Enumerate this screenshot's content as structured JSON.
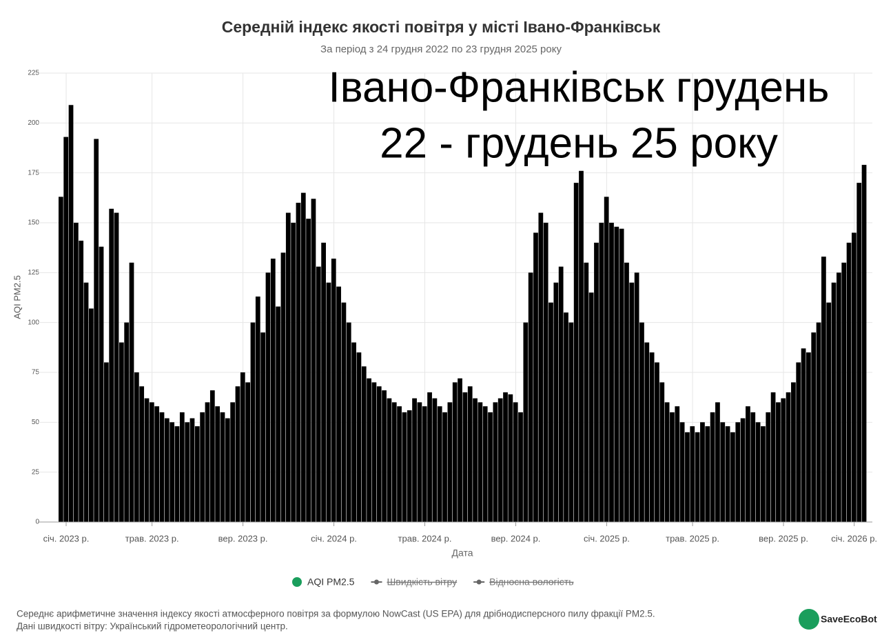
{
  "chart_data": {
    "type": "bar",
    "title": "Середній індекс якості повітря у місті Івано-Франківськ",
    "subtitle": "За період з 24 грудня 2022 по 23 грудня 2025 року",
    "annotation": [
      "Івано-Франківськ грудень",
      "22 - грудень 25 року"
    ],
    "y_label": "AQI PM2.5",
    "x_label": "Дата",
    "ylim": [
      0,
      225
    ],
    "yticks": [
      0,
      25,
      50,
      75,
      100,
      125,
      150,
      175,
      200,
      225
    ],
    "grid": true,
    "categories": [
      null,
      "січ. 2023 р.",
      null,
      null,
      null,
      null,
      null,
      null,
      null,
      null,
      null,
      null,
      null,
      null,
      null,
      null,
      null,
      null,
      "трав. 2023 р.",
      null,
      null,
      null,
      null,
      null,
      null,
      null,
      null,
      null,
      null,
      null,
      null,
      null,
      null,
      null,
      null,
      null,
      "вер. 2023 р.",
      null,
      null,
      null,
      null,
      null,
      null,
      null,
      null,
      null,
      null,
      null,
      null,
      null,
      null,
      null,
      null,
      null,
      "січ. 2024 р.",
      null,
      null,
      null,
      null,
      null,
      null,
      null,
      null,
      null,
      null,
      null,
      null,
      null,
      null,
      null,
      null,
      null,
      "трав. 2024 р.",
      null,
      null,
      null,
      null,
      null,
      null,
      null,
      null,
      null,
      null,
      null,
      null,
      null,
      null,
      null,
      null,
      null,
      "вер. 2024 р.",
      null,
      null,
      null,
      null,
      null,
      null,
      null,
      null,
      null,
      null,
      null,
      null,
      null,
      null,
      null,
      null,
      null,
      "січ. 2025 р.",
      null,
      null,
      null,
      null,
      null,
      null,
      null,
      null,
      null,
      null,
      null,
      null,
      null,
      null,
      null,
      null,
      "трав. 2025 р.",
      null,
      null,
      null,
      null,
      null,
      null,
      null,
      null,
      null,
      null,
      null,
      null,
      null,
      null,
      null,
      null,
      null,
      "вер. 2025 р.",
      null,
      null,
      null,
      null,
      null,
      null,
      null,
      null,
      null,
      null,
      null,
      null,
      null,
      "січ. 2026 р.",
      null,
      null
    ],
    "series": [
      {
        "name": "AQI PM2.5",
        "color": "#000000",
        "values": [
          163,
          193,
          209,
          150,
          141,
          120,
          107,
          192,
          138,
          80,
          157,
          155,
          90,
          100,
          130,
          75,
          68,
          62,
          60,
          58,
          55,
          52,
          50,
          48,
          55,
          50,
          52,
          48,
          55,
          60,
          66,
          58,
          55,
          52,
          60,
          68,
          75,
          70,
          100,
          113,
          95,
          125,
          132,
          108,
          135,
          155,
          150,
          160,
          165,
          152,
          162,
          128,
          140,
          120,
          132,
          118,
          110,
          100,
          90,
          85,
          78,
          72,
          70,
          68,
          66,
          62,
          60,
          58,
          55,
          56,
          62,
          60,
          58,
          65,
          62,
          58,
          55,
          60,
          70,
          72,
          65,
          68,
          62,
          60,
          58,
          55,
          60,
          62,
          65,
          64,
          60,
          55,
          100,
          125,
          145,
          155,
          150,
          110,
          120,
          128,
          105,
          100,
          170,
          176,
          130,
          115,
          140,
          150,
          163,
          150,
          148,
          147,
          130,
          120,
          125,
          100,
          90,
          85,
          80,
          70,
          60,
          55,
          58,
          50,
          45,
          48,
          45,
          50,
          48,
          55,
          60,
          50,
          48,
          45,
          50,
          52,
          58,
          55,
          50,
          48,
          55,
          65,
          60,
          62,
          65,
          70,
          80,
          87,
          85,
          95,
          100,
          133,
          110,
          120,
          125,
          130,
          140,
          145,
          170,
          179
        ]
      }
    ],
    "legend": [
      {
        "name": "AQI PM2.5",
        "color": "#1a9e5c",
        "hidden": false
      },
      {
        "name": "Швидкість вітру",
        "color": "#666666",
        "hidden": true
      },
      {
        "name": "Відносна вологість",
        "color": "#666666",
        "hidden": true
      }
    ],
    "notes": [
      "Середнє арифметичне значення індексу якості атмосферного повітря за формулою NowCast (US EPA) для дрібнодисперсного пилу фракції PM2.5.",
      "Дані швидкості вітру: Український гідрометеорологічний центр."
    ],
    "logo": "SaveEcoBot"
  }
}
